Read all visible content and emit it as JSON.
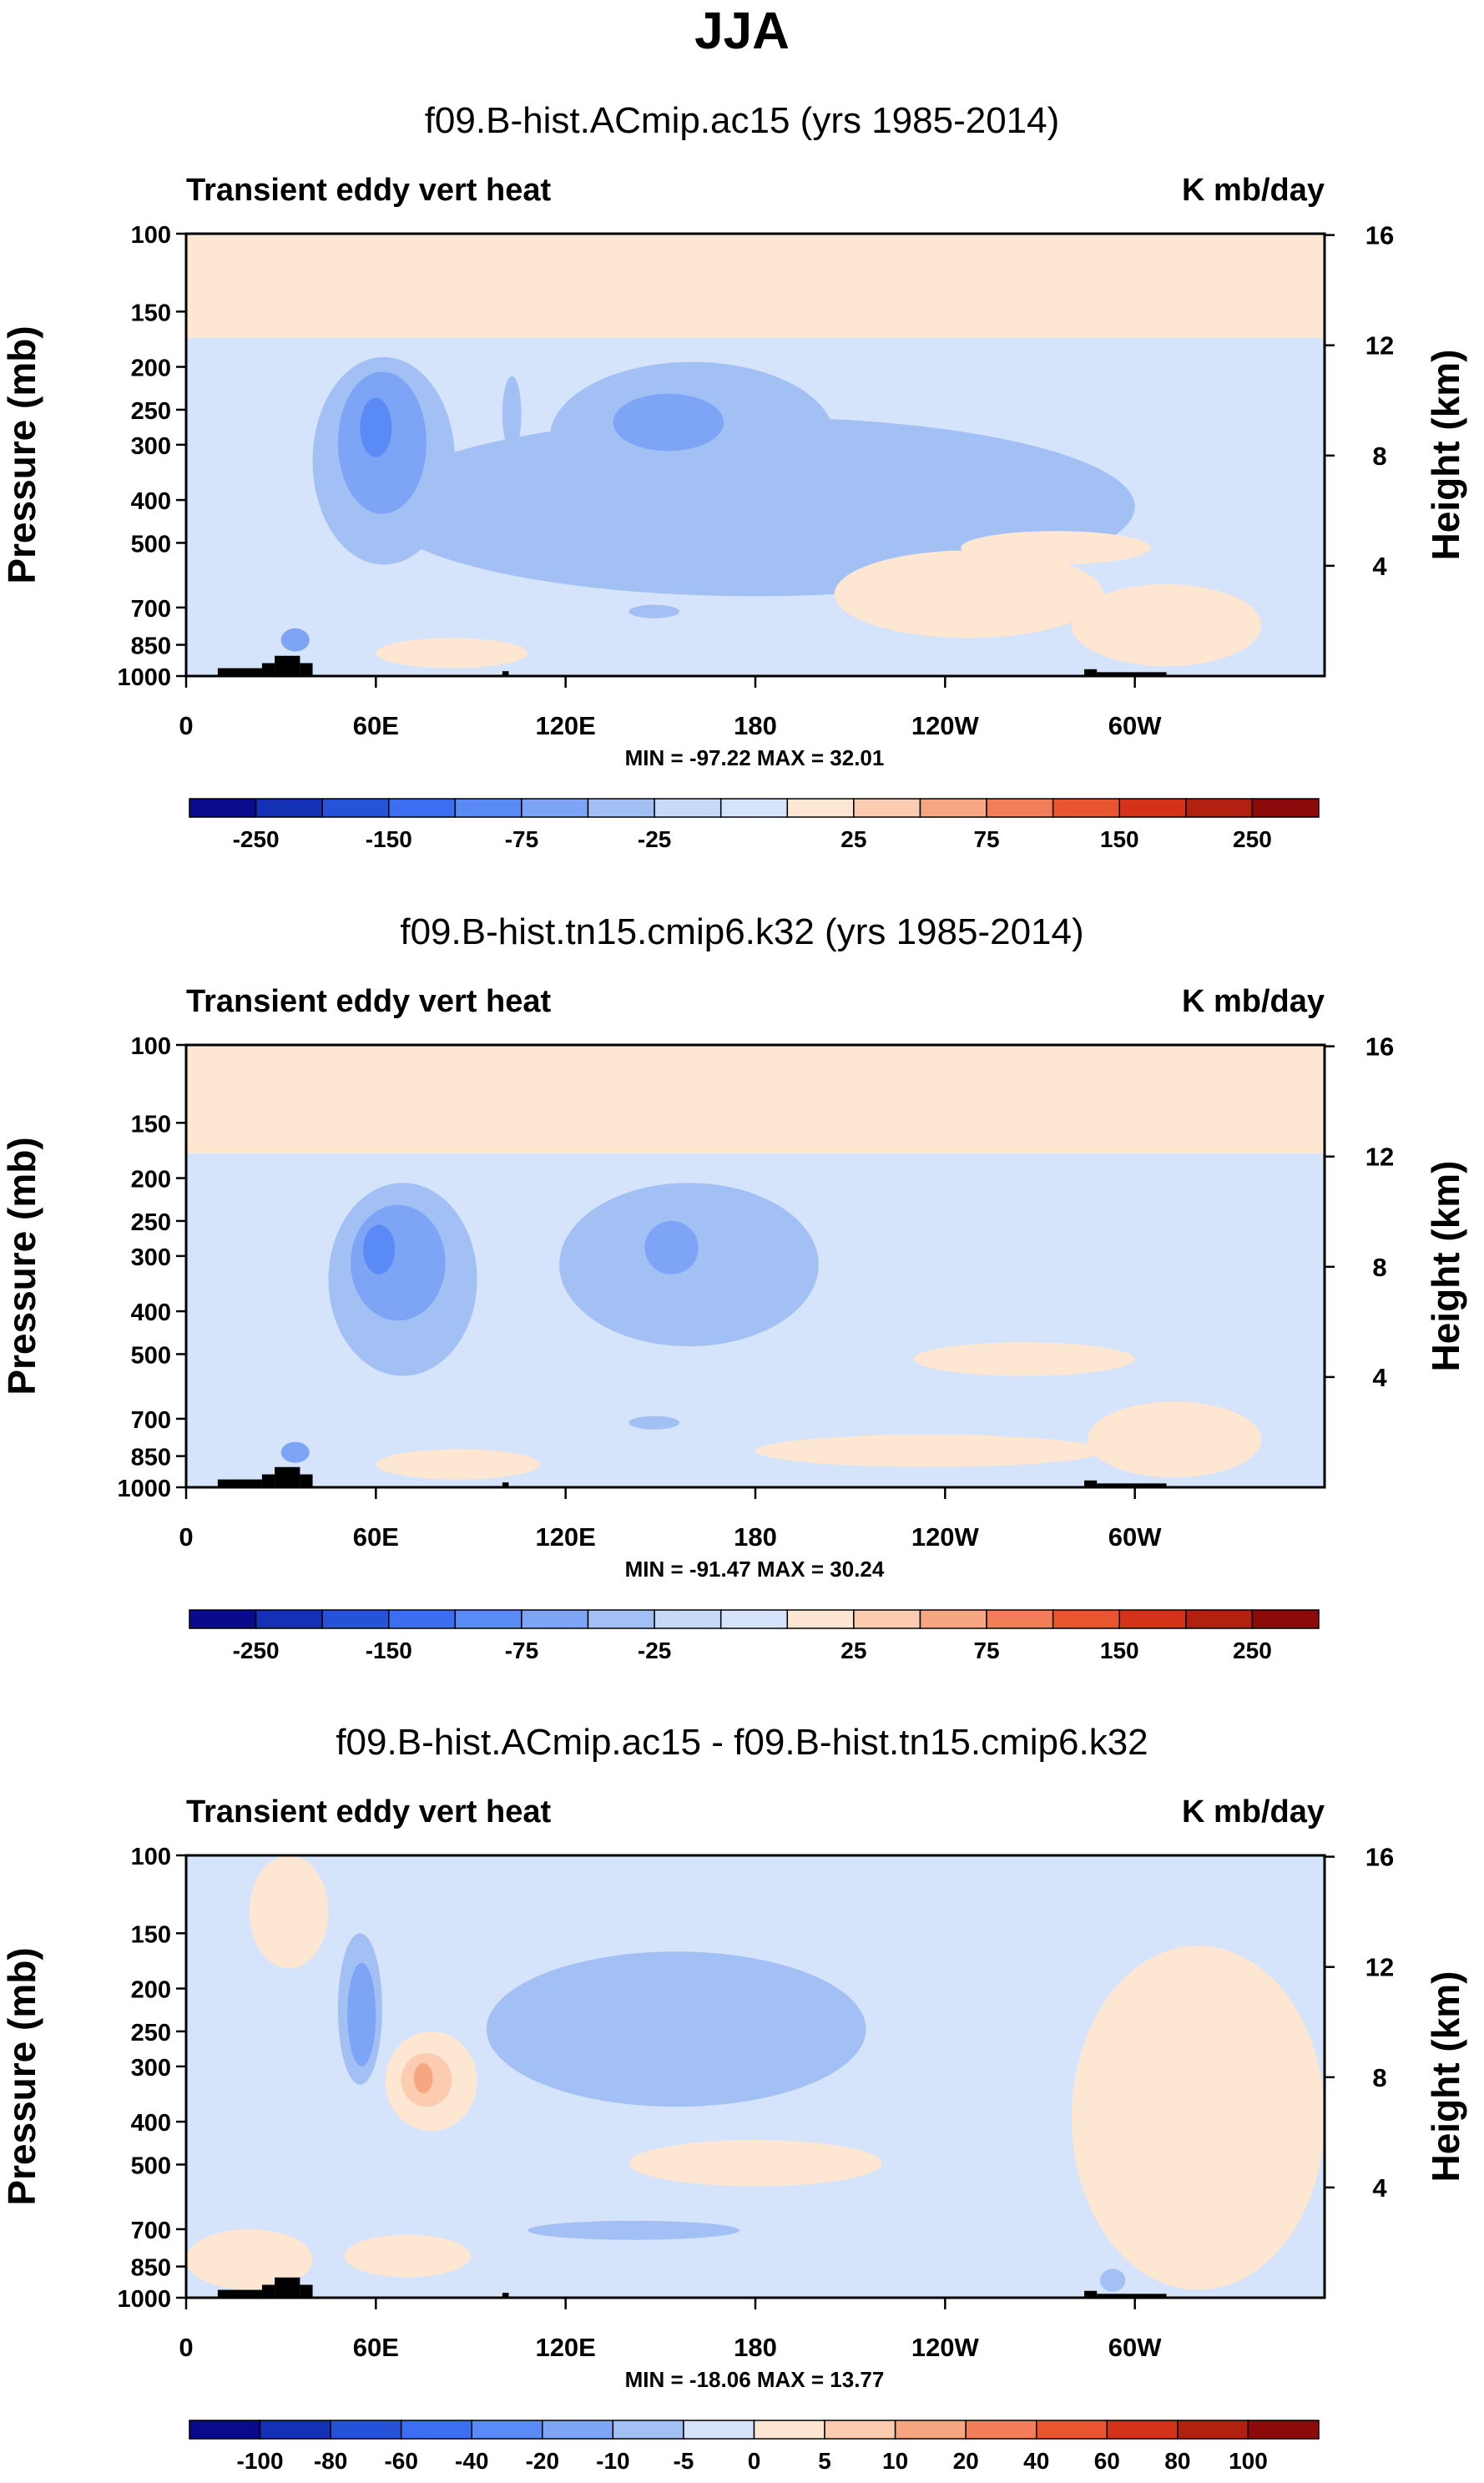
{
  "title": "JJA",
  "chart_data": [
    {
      "type": "heatmap",
      "title": "f09.B-hist.ACmip.ac15 (yrs 1985-2014)",
      "left_string": "Transient eddy vert heat",
      "right_string": "K mb/day",
      "ylabel": "Pressure (mb)",
      "ylabel_right": "Height (km)",
      "x_ticks": [
        "0",
        "60E",
        "120E",
        "180",
        "120W",
        "60W"
      ],
      "x_tick_values": [
        0,
        60,
        120,
        180,
        240,
        300
      ],
      "xlim": [
        0,
        360
      ],
      "y_ticks": [
        "100",
        "150",
        "200",
        "250",
        "300",
        "400",
        "500",
        "700",
        "850",
        "1000"
      ],
      "y_tick_values": [
        100,
        150,
        200,
        250,
        300,
        400,
        500,
        700,
        850,
        1000
      ],
      "ylim": [
        1000,
        100
      ],
      "height_ticks": [
        "16",
        "12",
        "8",
        "4"
      ],
      "height_tick_values": [
        16,
        12,
        8,
        4
      ],
      "stats": "MIN = -97.22   MAX =  32.01",
      "min": -97.22,
      "max": 32.01,
      "colorbar": {
        "levels": [
          -250,
          -200,
          -150,
          -100,
          -75,
          -50,
          -25,
          -10,
          10,
          25,
          50,
          75,
          100,
          150,
          200,
          250
        ],
        "labels": [
          "-250",
          "-150",
          "-75",
          "-25",
          "25",
          "75",
          "150",
          "250"
        ],
        "label_indices": [
          0,
          2,
          4,
          6,
          9,
          11,
          13,
          15
        ],
        "colors": [
          "#0a0a8c",
          "#1430b4",
          "#2652d9",
          "#3b6ef0",
          "#5a8af5",
          "#7ea5f5",
          "#a3c0f5",
          "#c6d9f7",
          "#d5e4fb",
          "#fde6d2",
          "#fbccb0",
          "#f7a682",
          "#f27d58",
          "#e9552f",
          "#d43319",
          "#b2200f",
          "#8c0a0a"
        ]
      },
      "features": [
        {
          "region": "stratosphere",
          "lon": [
            0,
            360
          ],
          "p": [
            100,
            170
          ],
          "value": 12
        },
        {
          "region": "troposphere background",
          "lon": [
            0,
            360
          ],
          "p": [
            170,
            1000
          ],
          "value": -6
        },
        {
          "region": "Asian jet core",
          "lon": [
            48,
            76
          ],
          "p": [
            210,
            400
          ],
          "value": -97.2
        },
        {
          "region": "Pacific jet",
          "lon": [
            115,
            205
          ],
          "p": [
            200,
            430
          ],
          "value": -45
        },
        {
          "region": "North Atlantic lower troposphere",
          "lon": [
            200,
            300
          ],
          "p": [
            450,
            800
          ],
          "value": 18
        }
      ]
    },
    {
      "type": "heatmap",
      "title": "f09.B-hist.tn15.cmip6.k32 (yrs 1985-2014)",
      "left_string": "Transient eddy vert heat",
      "right_string": "K mb/day",
      "ylabel": "Pressure (mb)",
      "ylabel_right": "Height (km)",
      "x_ticks": [
        "0",
        "60E",
        "120E",
        "180",
        "120W",
        "60W"
      ],
      "x_tick_values": [
        0,
        60,
        120,
        180,
        240,
        300
      ],
      "xlim": [
        0,
        360
      ],
      "y_ticks": [
        "100",
        "150",
        "200",
        "250",
        "300",
        "400",
        "500",
        "700",
        "850",
        "1000"
      ],
      "y_tick_values": [
        100,
        150,
        200,
        250,
        300,
        400,
        500,
        700,
        850,
        1000
      ],
      "ylim": [
        1000,
        100
      ],
      "height_ticks": [
        "16",
        "12",
        "8",
        "4"
      ],
      "height_tick_values": [
        16,
        12,
        8,
        4
      ],
      "stats": "MIN = -91.47   MAX =  30.24",
      "min": -91.47,
      "max": 30.24,
      "colorbar": {
        "levels": [
          -250,
          -200,
          -150,
          -100,
          -75,
          -50,
          -25,
          -10,
          10,
          25,
          50,
          75,
          100,
          150,
          200,
          250
        ],
        "labels": [
          "-250",
          "-150",
          "-75",
          "-25",
          "25",
          "75",
          "150",
          "250"
        ],
        "label_indices": [
          0,
          2,
          4,
          6,
          9,
          11,
          13,
          15
        ],
        "colors": [
          "#0a0a8c",
          "#1430b4",
          "#2652d9",
          "#3b6ef0",
          "#5a8af5",
          "#7ea5f5",
          "#a3c0f5",
          "#c6d9f7",
          "#d5e4fb",
          "#fde6d2",
          "#fbccb0",
          "#f7a682",
          "#f27d58",
          "#e9552f",
          "#d43319",
          "#b2200f",
          "#8c0a0a"
        ]
      },
      "features": [
        {
          "region": "stratosphere",
          "lon": [
            0,
            360
          ],
          "p": [
            100,
            175
          ],
          "value": 12
        },
        {
          "region": "troposphere background",
          "lon": [
            0,
            360
          ],
          "p": [
            175,
            1000
          ],
          "value": -6
        },
        {
          "region": "Asian jet core",
          "lon": [
            45,
            90
          ],
          "p": [
            220,
            430
          ],
          "value": -91.5
        },
        {
          "region": "Pacific jet",
          "lon": [
            118,
            200
          ],
          "p": [
            220,
            460
          ],
          "value": -40
        },
        {
          "region": "North Atlantic lower troposphere",
          "lon": [
            185,
            290
          ],
          "p": [
            480,
            820
          ],
          "value": 16
        }
      ]
    },
    {
      "type": "heatmap",
      "title": "f09.B-hist.ACmip.ac15 - f09.B-hist.tn15.cmip6.k32",
      "left_string": "Transient eddy vert heat",
      "right_string": "K mb/day",
      "ylabel": "Pressure (mb)",
      "ylabel_right": "Height (km)",
      "x_ticks": [
        "0",
        "60E",
        "120E",
        "180",
        "120W",
        "60W"
      ],
      "x_tick_values": [
        0,
        60,
        120,
        180,
        240,
        300
      ],
      "xlim": [
        0,
        360
      ],
      "y_ticks": [
        "100",
        "150",
        "200",
        "250",
        "300",
        "400",
        "500",
        "700",
        "850",
        "1000"
      ],
      "y_tick_values": [
        100,
        150,
        200,
        250,
        300,
        400,
        500,
        700,
        850,
        1000
      ],
      "ylim": [
        1000,
        100
      ],
      "height_ticks": [
        "16",
        "12",
        "8",
        "4"
      ],
      "height_tick_values": [
        16,
        12,
        8,
        4
      ],
      "stats": "MIN = -18.06   MAX =  13.77",
      "min": -18.06,
      "max": 13.77,
      "colorbar": {
        "levels": [
          -100,
          -80,
          -60,
          -40,
          -20,
          -10,
          -5,
          0,
          5,
          10,
          20,
          40,
          60,
          80,
          100
        ],
        "labels": [
          "-100",
          "-80",
          "-60",
          "-40",
          "-20",
          "-10",
          "-5",
          "0",
          "5",
          "10",
          "20",
          "40",
          "60",
          "80",
          "100"
        ],
        "label_indices": [
          0,
          1,
          2,
          3,
          4,
          5,
          6,
          7,
          8,
          9,
          10,
          11,
          12,
          13,
          14
        ],
        "colors": [
          "#0a0a8c",
          "#1430b4",
          "#2652d9",
          "#3b6ef0",
          "#5a8af5",
          "#7ea5f5",
          "#a3c0f5",
          "#d5e4fb",
          "#fde6d2",
          "#fbccb0",
          "#f7a682",
          "#f27d58",
          "#e9552f",
          "#d43319",
          "#b2200f",
          "#8c0a0a"
        ]
      },
      "features": [
        {
          "region": "background",
          "lon": [
            0,
            360
          ],
          "p": [
            100,
            1000
          ],
          "value": -2
        },
        {
          "region": "western Pacific upper troposphere",
          "lon": [
            95,
            215
          ],
          "p": [
            160,
            360
          ],
          "value": -8
        },
        {
          "region": "Asian jet dipole (negative)",
          "lon": [
            48,
            62
          ],
          "p": [
            150,
            330
          ],
          "value": -18.06
        },
        {
          "region": "Asian jet dipole (positive)",
          "lon": [
            65,
            92
          ],
          "p": [
            260,
            400
          ],
          "value": 13.77
        },
        {
          "region": "Atlantic",
          "lon": [
            280,
            360
          ],
          "p": [
            200,
            1000
          ],
          "value": 3
        }
      ]
    }
  ]
}
